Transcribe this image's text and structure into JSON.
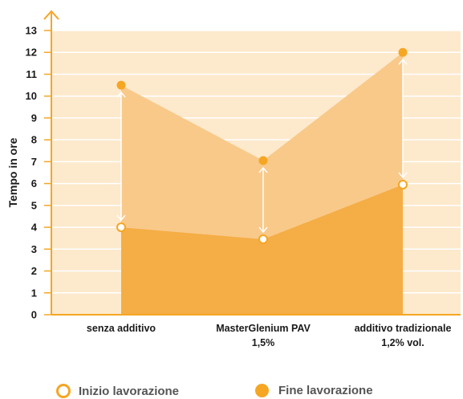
{
  "colors": {
    "plot_bg": "#fde9cc",
    "range_fill": "#f9c98a",
    "lower_fill": "#f5ad46",
    "accent": "#f5a623",
    "grid": "#ffffff"
  },
  "chart_data": {
    "type": "area",
    "ylabel": "Tempo in ore",
    "xlabel": "",
    "ylim": [
      0,
      13
    ],
    "yticks": [
      0,
      1,
      2,
      3,
      4,
      5,
      6,
      7,
      8,
      9,
      10,
      11,
      12,
      13
    ],
    "grid": true,
    "categories": [
      [
        "senza additivo"
      ],
      [
        "MasterGlenium PAV",
        "1,5%"
      ],
      [
        "additivo tradizionale",
        "1,2% vol."
      ]
    ],
    "series": [
      {
        "name": "Inizio lavorazione",
        "values": [
          4.0,
          3.45,
          5.95
        ]
      },
      {
        "name": "Fine lavorazione",
        "values": [
          10.5,
          7.05,
          12.0
        ]
      }
    ],
    "legend_position": "bottom"
  },
  "legend": {
    "start_label": "Inizio lavorazione",
    "end_label": "Fine lavorazione"
  }
}
